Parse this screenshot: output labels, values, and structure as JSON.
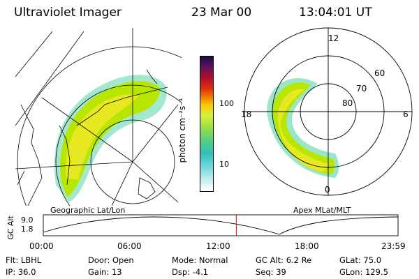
{
  "header": {
    "title": "Ultraviolet Imager",
    "date": "23 Mar 00",
    "time": "13:04:01 UT"
  },
  "colorbar": {
    "unit_label": "photon cm⁻²s⁻¹",
    "tick_100": "100",
    "tick_10": "10"
  },
  "geo_panel": {
    "caption": "Geographic Lat/Lon"
  },
  "polar_panel": {
    "caption": "Apex MLat/MLT",
    "mlt_12": "12",
    "mlt_18": "18",
    "mlt_6": "6",
    "mlt_0": "0",
    "lat_60": "60",
    "lat_70": "70",
    "lat_80": "80"
  },
  "orbit_plot": {
    "ylabel": "GC Alt",
    "ytick_top": "9.0",
    "ytick_bottom": "1.8",
    "times": [
      "00:00",
      "06:00",
      "12:00",
      "18:00",
      "23:59"
    ],
    "marker_time_fraction": 0.544,
    "marker_color": "#e00000"
  },
  "status": {
    "filter": "Flt: LBHL",
    "door": "Door: Open",
    "mode": "Mode: Normal",
    "gc_alt": "GC Alt: 6.2 Re",
    "glat": "GLat:  75.0",
    "ip": "IP: 36.0",
    "gain": "Gain: 13",
    "dsp": "Dsp:    -4.1",
    "seq": "Seq: 39",
    "glon": "GLon: 129.5"
  },
  "colors": {
    "aurora_outer": "#99e6c8",
    "aurora_mid": "#b8e600",
    "aurora_core": "#e8e822"
  }
}
